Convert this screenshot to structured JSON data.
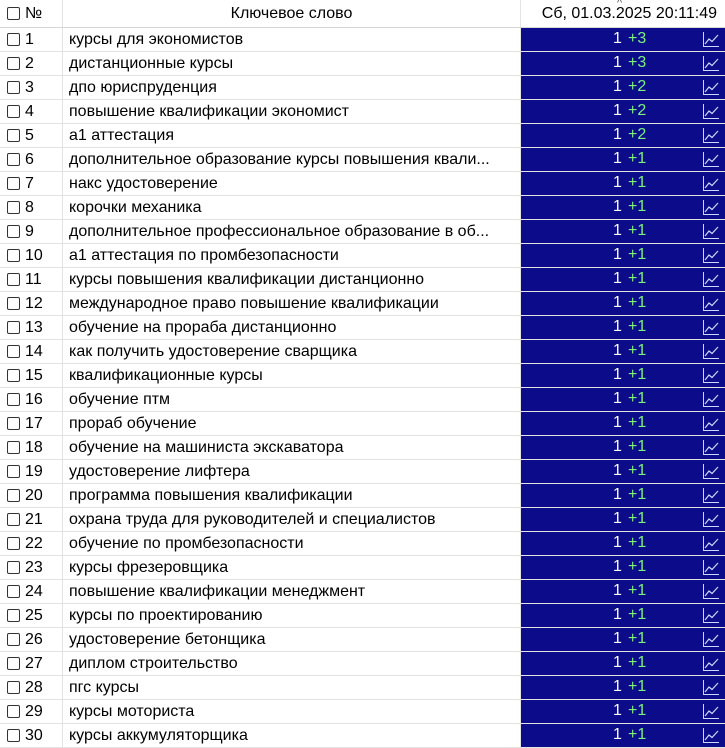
{
  "header": {
    "num_label": "№",
    "keyword_label": "Ключевое слово",
    "date_label": "Сб, 01.03.2025 20:11:49"
  },
  "colors": {
    "value_bg": "#0c0c8a",
    "delta_up": "#7cf07c"
  },
  "rows": [
    {
      "num": "1",
      "keyword": "курсы для экономистов",
      "position": "1",
      "delta": "+3"
    },
    {
      "num": "2",
      "keyword": "дистанционные курсы",
      "position": "1",
      "delta": "+3"
    },
    {
      "num": "3",
      "keyword": "дпо юриспруденция",
      "position": "1",
      "delta": "+2"
    },
    {
      "num": "4",
      "keyword": "повышение квалификации экономист",
      "position": "1",
      "delta": "+2"
    },
    {
      "num": "5",
      "keyword": "а1 аттестация",
      "position": "1",
      "delta": "+2"
    },
    {
      "num": "6",
      "keyword": "дополнительное образование курсы повышения квали...",
      "position": "1",
      "delta": "+1"
    },
    {
      "num": "7",
      "keyword": "накс удостоверение",
      "position": "1",
      "delta": "+1"
    },
    {
      "num": "8",
      "keyword": "корочки механика",
      "position": "1",
      "delta": "+1"
    },
    {
      "num": "9",
      "keyword": "дополнительное профессиональное образование в об...",
      "position": "1",
      "delta": "+1"
    },
    {
      "num": "10",
      "keyword": "а1 аттестация по промбезопасности",
      "position": "1",
      "delta": "+1"
    },
    {
      "num": "11",
      "keyword": "курсы повышения квалификации дистанционно",
      "position": "1",
      "delta": "+1"
    },
    {
      "num": "12",
      "keyword": "международное право повышение квалификации",
      "position": "1",
      "delta": "+1"
    },
    {
      "num": "13",
      "keyword": "обучение на прораба дистанционно",
      "position": "1",
      "delta": "+1"
    },
    {
      "num": "14",
      "keyword": "как получить удостоверение сварщика",
      "position": "1",
      "delta": "+1"
    },
    {
      "num": "15",
      "keyword": "квалификационные курсы",
      "position": "1",
      "delta": "+1"
    },
    {
      "num": "16",
      "keyword": "обучение птм",
      "position": "1",
      "delta": "+1"
    },
    {
      "num": "17",
      "keyword": "прораб обучение",
      "position": "1",
      "delta": "+1"
    },
    {
      "num": "18",
      "keyword": "обучение на машиниста экскаватора",
      "position": "1",
      "delta": "+1"
    },
    {
      "num": "19",
      "keyword": "удостоверение лифтера",
      "position": "1",
      "delta": "+1"
    },
    {
      "num": "20",
      "keyword": "программа повышения квалификации",
      "position": "1",
      "delta": "+1"
    },
    {
      "num": "21",
      "keyword": "охрана труда для руководителей и специалистов",
      "position": "1",
      "delta": "+1"
    },
    {
      "num": "22",
      "keyword": "обучение по промбезопасности",
      "position": "1",
      "delta": "+1"
    },
    {
      "num": "23",
      "keyword": "курсы фрезеровщика",
      "position": "1",
      "delta": "+1"
    },
    {
      "num": "24",
      "keyword": "повышение квалификации менеджмент",
      "position": "1",
      "delta": "+1"
    },
    {
      "num": "25",
      "keyword": "курсы по проектированию",
      "position": "1",
      "delta": "+1"
    },
    {
      "num": "26",
      "keyword": "удостоверение бетонщика",
      "position": "1",
      "delta": "+1"
    },
    {
      "num": "27",
      "keyword": "диплом строительство",
      "position": "1",
      "delta": "+1"
    },
    {
      "num": "28",
      "keyword": "пгс курсы",
      "position": "1",
      "delta": "+1"
    },
    {
      "num": "29",
      "keyword": "курсы моториста",
      "position": "1",
      "delta": "+1"
    },
    {
      "num": "30",
      "keyword": "курсы аккумуляторщика",
      "position": "1",
      "delta": "+1"
    }
  ]
}
